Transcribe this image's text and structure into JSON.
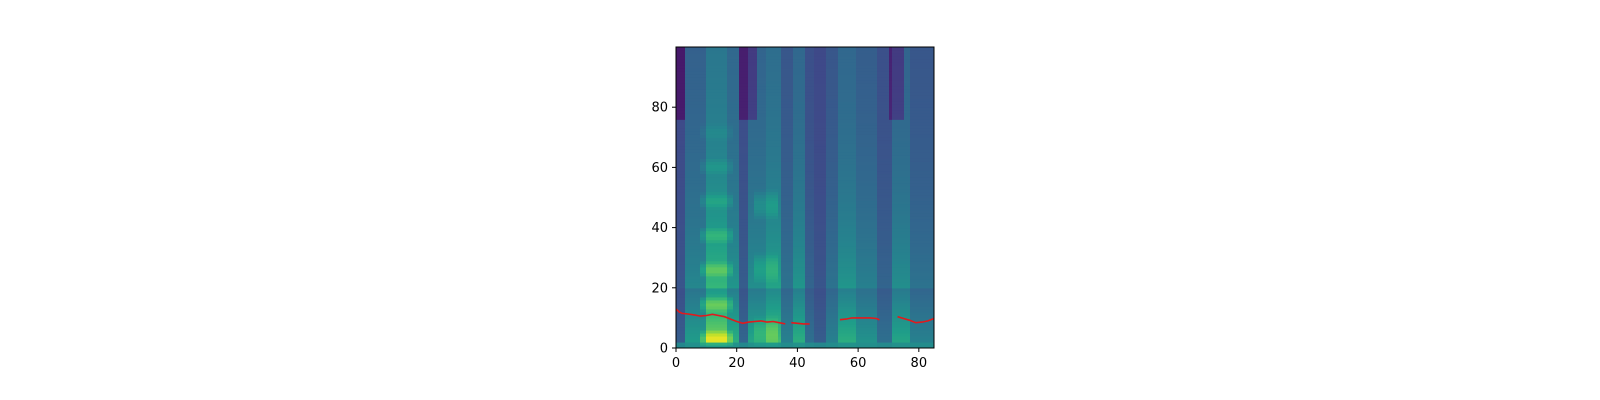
{
  "chart_data": {
    "type": "heatmap",
    "title": "",
    "xlabel": "",
    "ylabel": "",
    "xlim": [
      0,
      85
    ],
    "ylim": [
      0,
      100
    ],
    "x_ticks": [
      0,
      20,
      40,
      60,
      80
    ],
    "x_tick_labels": [
      "0",
      "20",
      "40",
      "60",
      "80"
    ],
    "y_ticks": [
      0,
      20,
      40,
      60,
      80
    ],
    "y_tick_labels": [
      "0",
      "20",
      "40",
      "60",
      "80"
    ],
    "colormap": "viridis",
    "grid": false,
    "legend": "none",
    "heatmap": {
      "n_frames": 86,
      "n_bins": 100,
      "value_range": [
        0,
        1
      ]
    },
    "overlay_line": {
      "color": "#e31a1c",
      "segments": [
        [
          [
            0,
            13
          ],
          [
            1,
            12
          ],
          [
            2,
            11.5
          ],
          [
            4,
            11.3
          ],
          [
            6,
            11
          ],
          [
            8,
            10.6
          ],
          [
            10,
            10.8
          ],
          [
            12,
            11.2
          ],
          [
            14,
            10.8
          ],
          [
            16,
            10.4
          ],
          [
            18,
            9.6
          ],
          [
            20,
            8.8
          ],
          [
            22,
            8.2
          ],
          [
            24,
            8.6
          ],
          [
            26,
            8.8
          ],
          [
            28,
            9
          ],
          [
            30,
            8.6
          ],
          [
            32,
            8.8
          ],
          [
            34,
            8.4
          ],
          [
            36,
            8
          ]
        ],
        [
          [
            38,
            8.4
          ],
          [
            40,
            8.2
          ],
          [
            42,
            8
          ],
          [
            44,
            8
          ]
        ],
        [
          [
            54,
            9.4
          ],
          [
            56,
            9.6
          ],
          [
            58,
            10
          ],
          [
            60,
            10
          ],
          [
            62,
            10
          ],
          [
            64,
            10
          ],
          [
            66,
            9.8
          ],
          [
            67,
            9.4
          ]
        ],
        [
          [
            73,
            10.4
          ],
          [
            75,
            9.8
          ],
          [
            77,
            9.2
          ],
          [
            79,
            8.4
          ],
          [
            81,
            8.6
          ],
          [
            83,
            9
          ],
          [
            85,
            9.8
          ]
        ]
      ]
    }
  }
}
